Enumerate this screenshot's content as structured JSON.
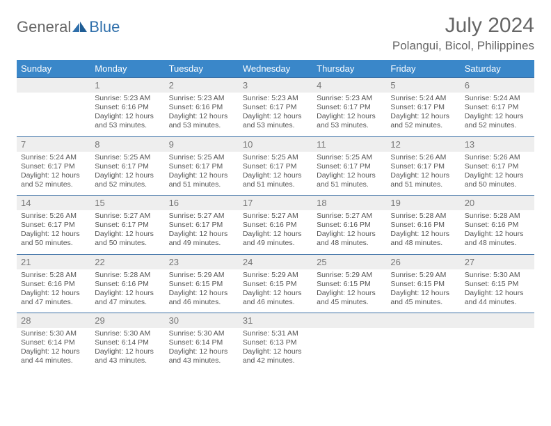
{
  "logo": {
    "text1": "General",
    "text2": "Blue"
  },
  "title": "July 2024",
  "location": "Polangui, Bicol, Philippines",
  "colors": {
    "header_bg": "#3a87c9",
    "header_text": "#ffffff",
    "border": "#3a6fa5",
    "daynum_bg": "#eeeeee",
    "text": "#555555",
    "logo_blue": "#2f6fab"
  },
  "days": [
    "Sunday",
    "Monday",
    "Tuesday",
    "Wednesday",
    "Thursday",
    "Friday",
    "Saturday"
  ],
  "weeks": [
    [
      null,
      {
        "n": "1",
        "sr": "5:23 AM",
        "ss": "6:16 PM",
        "dl": "12 hours and 53 minutes."
      },
      {
        "n": "2",
        "sr": "5:23 AM",
        "ss": "6:16 PM",
        "dl": "12 hours and 53 minutes."
      },
      {
        "n": "3",
        "sr": "5:23 AM",
        "ss": "6:17 PM",
        "dl": "12 hours and 53 minutes."
      },
      {
        "n": "4",
        "sr": "5:23 AM",
        "ss": "6:17 PM",
        "dl": "12 hours and 53 minutes."
      },
      {
        "n": "5",
        "sr": "5:24 AM",
        "ss": "6:17 PM",
        "dl": "12 hours and 52 minutes."
      },
      {
        "n": "6",
        "sr": "5:24 AM",
        "ss": "6:17 PM",
        "dl": "12 hours and 52 minutes."
      }
    ],
    [
      {
        "n": "7",
        "sr": "5:24 AM",
        "ss": "6:17 PM",
        "dl": "12 hours and 52 minutes."
      },
      {
        "n": "8",
        "sr": "5:25 AM",
        "ss": "6:17 PM",
        "dl": "12 hours and 52 minutes."
      },
      {
        "n": "9",
        "sr": "5:25 AM",
        "ss": "6:17 PM",
        "dl": "12 hours and 51 minutes."
      },
      {
        "n": "10",
        "sr": "5:25 AM",
        "ss": "6:17 PM",
        "dl": "12 hours and 51 minutes."
      },
      {
        "n": "11",
        "sr": "5:25 AM",
        "ss": "6:17 PM",
        "dl": "12 hours and 51 minutes."
      },
      {
        "n": "12",
        "sr": "5:26 AM",
        "ss": "6:17 PM",
        "dl": "12 hours and 51 minutes."
      },
      {
        "n": "13",
        "sr": "5:26 AM",
        "ss": "6:17 PM",
        "dl": "12 hours and 50 minutes."
      }
    ],
    [
      {
        "n": "14",
        "sr": "5:26 AM",
        "ss": "6:17 PM",
        "dl": "12 hours and 50 minutes."
      },
      {
        "n": "15",
        "sr": "5:27 AM",
        "ss": "6:17 PM",
        "dl": "12 hours and 50 minutes."
      },
      {
        "n": "16",
        "sr": "5:27 AM",
        "ss": "6:17 PM",
        "dl": "12 hours and 49 minutes."
      },
      {
        "n": "17",
        "sr": "5:27 AM",
        "ss": "6:16 PM",
        "dl": "12 hours and 49 minutes."
      },
      {
        "n": "18",
        "sr": "5:27 AM",
        "ss": "6:16 PM",
        "dl": "12 hours and 48 minutes."
      },
      {
        "n": "19",
        "sr": "5:28 AM",
        "ss": "6:16 PM",
        "dl": "12 hours and 48 minutes."
      },
      {
        "n": "20",
        "sr": "5:28 AM",
        "ss": "6:16 PM",
        "dl": "12 hours and 48 minutes."
      }
    ],
    [
      {
        "n": "21",
        "sr": "5:28 AM",
        "ss": "6:16 PM",
        "dl": "12 hours and 47 minutes."
      },
      {
        "n": "22",
        "sr": "5:28 AM",
        "ss": "6:16 PM",
        "dl": "12 hours and 47 minutes."
      },
      {
        "n": "23",
        "sr": "5:29 AM",
        "ss": "6:15 PM",
        "dl": "12 hours and 46 minutes."
      },
      {
        "n": "24",
        "sr": "5:29 AM",
        "ss": "6:15 PM",
        "dl": "12 hours and 46 minutes."
      },
      {
        "n": "25",
        "sr": "5:29 AM",
        "ss": "6:15 PM",
        "dl": "12 hours and 45 minutes."
      },
      {
        "n": "26",
        "sr": "5:29 AM",
        "ss": "6:15 PM",
        "dl": "12 hours and 45 minutes."
      },
      {
        "n": "27",
        "sr": "5:30 AM",
        "ss": "6:15 PM",
        "dl": "12 hours and 44 minutes."
      }
    ],
    [
      {
        "n": "28",
        "sr": "5:30 AM",
        "ss": "6:14 PM",
        "dl": "12 hours and 44 minutes."
      },
      {
        "n": "29",
        "sr": "5:30 AM",
        "ss": "6:14 PM",
        "dl": "12 hours and 43 minutes."
      },
      {
        "n": "30",
        "sr": "5:30 AM",
        "ss": "6:14 PM",
        "dl": "12 hours and 43 minutes."
      },
      {
        "n": "31",
        "sr": "5:31 AM",
        "ss": "6:13 PM",
        "dl": "12 hours and 42 minutes."
      },
      null,
      null,
      null
    ]
  ],
  "labels": {
    "sunrise": "Sunrise:",
    "sunset": "Sunset:",
    "daylight": "Daylight:"
  }
}
